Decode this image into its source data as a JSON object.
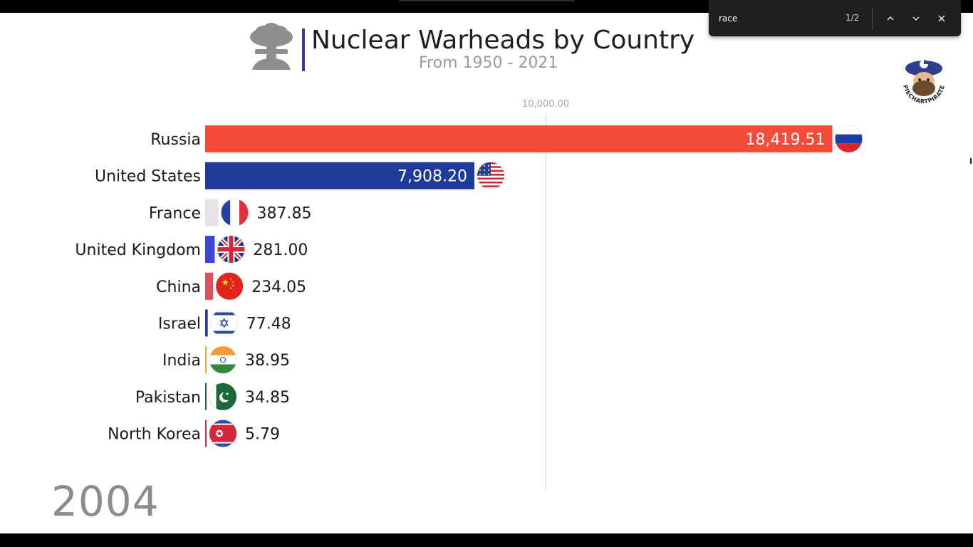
{
  "chart_data": {
    "type": "bar",
    "title": "Nuclear Warheads by Country",
    "subtitle": "From 1950 - 2021",
    "year": "2004",
    "xlim": [
      0,
      21000
    ],
    "gridlines": [
      10000
    ],
    "grid_labels": [
      "10,000.00"
    ],
    "categories": [
      "Russia",
      "United States",
      "France",
      "United Kingdom",
      "China",
      "Israel",
      "India",
      "Pakistan",
      "North Korea"
    ],
    "values": [
      18419.51,
      7908.2,
      387.85,
      281.0,
      234.05,
      77.48,
      38.95,
      34.85,
      5.79
    ],
    "value_labels": [
      "18,419.51",
      "7,908.20",
      "387.85",
      "281.00",
      "234.05",
      "77.48",
      "38.95",
      "34.85",
      "5.79"
    ],
    "bar_colors": [
      "#f44b3a",
      "#1f3b9a",
      "#e3e4e8",
      "#3c46d6",
      "#d7525d",
      "#2d3f9e",
      "#f7a94a",
      "#1d6b3a",
      "#c93040"
    ],
    "flag_icons": [
      "russia-flag-icon",
      "united-states-flag-icon",
      "france-flag-icon",
      "united-kingdom-flag-icon",
      "china-flag-icon",
      "israel-flag-icon",
      "india-flag-icon",
      "pakistan-flag-icon",
      "north-korea-flag-icon"
    ],
    "legend": "none"
  },
  "title_icon": "mushroom-cloud-icon",
  "logo": {
    "icon": "pie-chart-pirate-logo",
    "text": "PIECHARTPIRATE"
  },
  "find_bar": {
    "query": "race",
    "count": "1/2",
    "icons": [
      "chevron-up-icon",
      "chevron-down-icon",
      "close-icon"
    ]
  }
}
